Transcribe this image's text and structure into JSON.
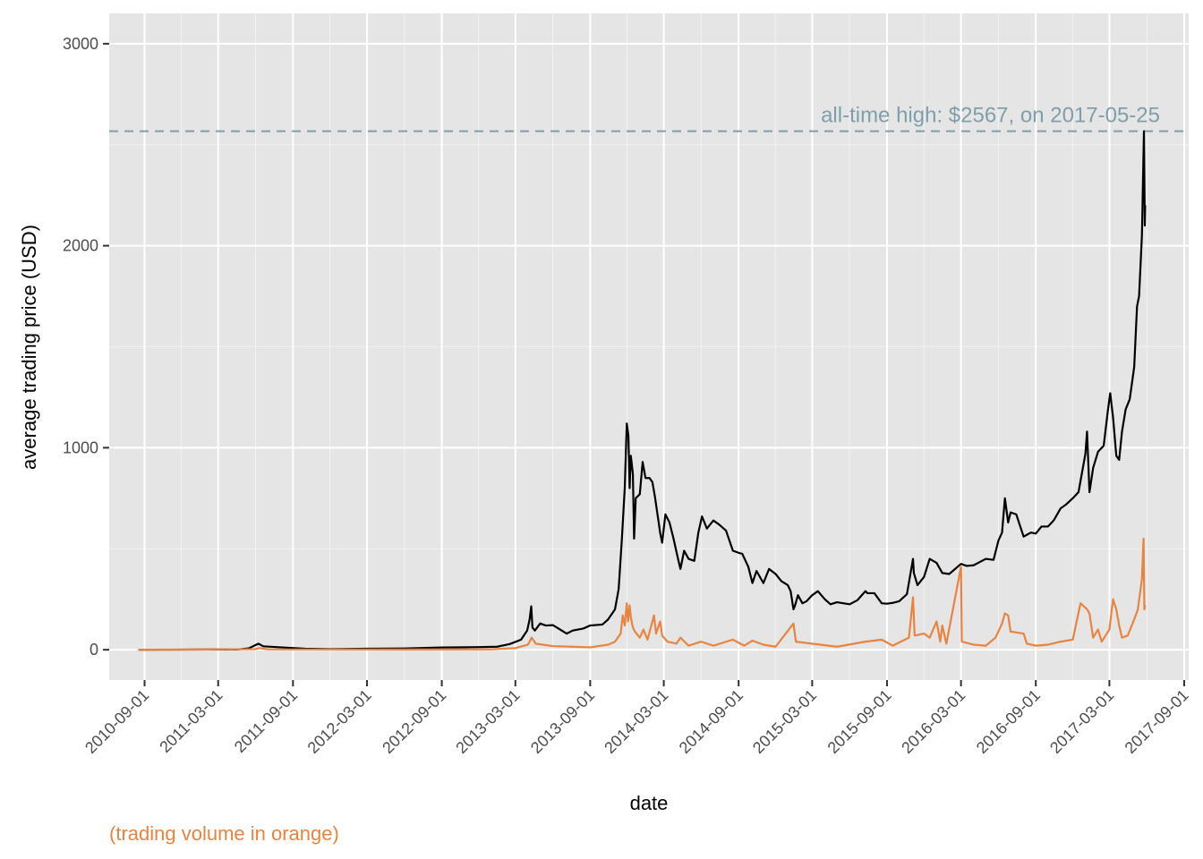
{
  "chart_data": {
    "type": "line",
    "title": "",
    "xlabel": "date",
    "ylabel": "average trading price (USD)",
    "caption": "(trading volume in orange)",
    "annotation": {
      "text": "all-time high: $2567, on 2017-05-25",
      "y": 2567,
      "color": "#7f9eab"
    },
    "ylim": [
      -150,
      3150
    ],
    "xlim": [
      "2010-06-06",
      "2017-09-12"
    ],
    "y_ticks": [
      0,
      1000,
      2000,
      3000
    ],
    "y_tick_labels": [
      "0",
      "1000",
      "2000",
      "3000"
    ],
    "x_ticks": [
      "2010-09-01",
      "2011-03-01",
      "2011-09-01",
      "2012-03-01",
      "2012-09-01",
      "2013-03-01",
      "2013-09-01",
      "2014-03-01",
      "2014-09-01",
      "2015-03-01",
      "2015-09-01",
      "2016-03-01",
      "2016-09-01",
      "2017-03-01",
      "2017-09-01"
    ],
    "grid": true,
    "background": "#e5e5e5",
    "series": [
      {
        "color": "#000000",
        "points": [
          [
            "2010-08-17",
            0.07
          ],
          [
            "2010-11-01",
            0.3
          ],
          [
            "2011-02-01",
            1
          ],
          [
            "2011-04-15",
            1
          ],
          [
            "2011-05-15",
            7
          ],
          [
            "2011-06-08",
            30
          ],
          [
            "2011-06-20",
            17
          ],
          [
            "2011-08-01",
            12
          ],
          [
            "2011-10-01",
            5
          ],
          [
            "2011-12-01",
            3
          ],
          [
            "2012-03-01",
            5
          ],
          [
            "2012-06-01",
            6
          ],
          [
            "2012-09-01",
            11
          ],
          [
            "2012-12-01",
            13
          ],
          [
            "2013-01-15",
            15
          ],
          [
            "2013-02-15",
            28
          ],
          [
            "2013-03-15",
            50
          ],
          [
            "2013-03-30",
            95
          ],
          [
            "2013-04-05",
            150
          ],
          [
            "2013-04-09",
            215
          ],
          [
            "2013-04-12",
            110
          ],
          [
            "2013-04-18",
            95
          ],
          [
            "2013-05-01",
            130
          ],
          [
            "2013-05-15",
            120
          ],
          [
            "2013-06-01",
            122
          ],
          [
            "2013-06-15",
            105
          ],
          [
            "2013-07-05",
            80
          ],
          [
            "2013-07-20",
            95
          ],
          [
            "2013-08-15",
            105
          ],
          [
            "2013-09-01",
            120
          ],
          [
            "2013-10-01",
            125
          ],
          [
            "2013-10-15",
            150
          ],
          [
            "2013-11-01",
            200
          ],
          [
            "2013-11-10",
            300
          ],
          [
            "2013-11-18",
            550
          ],
          [
            "2013-11-25",
            800
          ],
          [
            "2013-11-30",
            1120
          ],
          [
            "2013-12-04",
            1060
          ],
          [
            "2013-12-07",
            800
          ],
          [
            "2013-12-10",
            960
          ],
          [
            "2013-12-15",
            870
          ],
          [
            "2013-12-18",
            550
          ],
          [
            "2013-12-22",
            750
          ],
          [
            "2014-01-01",
            770
          ],
          [
            "2014-01-08",
            930
          ],
          [
            "2014-01-15",
            850
          ],
          [
            "2014-01-25",
            850
          ],
          [
            "2014-02-01",
            830
          ],
          [
            "2014-02-07",
            760
          ],
          [
            "2014-02-15",
            650
          ],
          [
            "2014-02-20",
            580
          ],
          [
            "2014-02-25",
            530
          ],
          [
            "2014-03-05",
            670
          ],
          [
            "2014-03-15",
            630
          ],
          [
            "2014-03-25",
            550
          ],
          [
            "2014-04-05",
            450
          ],
          [
            "2014-04-11",
            400
          ],
          [
            "2014-04-20",
            490
          ],
          [
            "2014-05-01",
            450
          ],
          [
            "2014-05-15",
            440
          ],
          [
            "2014-05-25",
            580
          ],
          [
            "2014-06-03",
            660
          ],
          [
            "2014-06-15",
            600
          ],
          [
            "2014-07-01",
            640
          ],
          [
            "2014-07-15",
            620
          ],
          [
            "2014-08-01",
            590
          ],
          [
            "2014-08-18",
            490
          ],
          [
            "2014-09-01",
            480
          ],
          [
            "2014-09-10",
            475
          ],
          [
            "2014-09-25",
            410
          ],
          [
            "2014-10-05",
            330
          ],
          [
            "2014-10-15",
            390
          ],
          [
            "2014-11-01",
            330
          ],
          [
            "2014-11-15",
            400
          ],
          [
            "2014-12-01",
            375
          ],
          [
            "2014-12-15",
            340
          ],
          [
            "2014-12-31",
            320
          ],
          [
            "2015-01-07",
            290
          ],
          [
            "2015-01-14",
            200
          ],
          [
            "2015-01-18",
            220
          ],
          [
            "2015-01-25",
            270
          ],
          [
            "2015-02-05",
            230
          ],
          [
            "2015-02-15",
            240
          ],
          [
            "2015-03-01",
            270
          ],
          [
            "2015-03-15",
            290
          ],
          [
            "2015-04-01",
            250
          ],
          [
            "2015-04-15",
            225
          ],
          [
            "2015-05-01",
            235
          ],
          [
            "2015-06-01",
            225
          ],
          [
            "2015-06-20",
            245
          ],
          [
            "2015-07-10",
            290
          ],
          [
            "2015-07-15",
            280
          ],
          [
            "2015-08-01",
            280
          ],
          [
            "2015-08-19",
            230
          ],
          [
            "2015-09-01",
            228
          ],
          [
            "2015-09-15",
            232
          ],
          [
            "2015-10-01",
            240
          ],
          [
            "2015-10-20",
            275
          ],
          [
            "2015-11-04",
            450
          ],
          [
            "2015-11-06",
            380
          ],
          [
            "2015-11-15",
            320
          ],
          [
            "2015-12-01",
            360
          ],
          [
            "2015-12-15",
            450
          ],
          [
            "2016-01-01",
            430
          ],
          [
            "2016-01-15",
            380
          ],
          [
            "2016-02-01",
            375
          ],
          [
            "2016-03-01",
            425
          ],
          [
            "2016-03-15",
            415
          ],
          [
            "2016-04-01",
            418
          ],
          [
            "2016-05-01",
            450
          ],
          [
            "2016-05-20",
            445
          ],
          [
            "2016-06-01",
            540
          ],
          [
            "2016-06-10",
            580
          ],
          [
            "2016-06-17",
            750
          ],
          [
            "2016-06-25",
            630
          ],
          [
            "2016-07-01",
            680
          ],
          [
            "2016-07-15",
            670
          ],
          [
            "2016-08-02",
            560
          ],
          [
            "2016-08-20",
            580
          ],
          [
            "2016-09-01",
            575
          ],
          [
            "2016-09-15",
            610
          ],
          [
            "2016-10-01",
            610
          ],
          [
            "2016-10-15",
            640
          ],
          [
            "2016-11-01",
            700
          ],
          [
            "2016-11-15",
            720
          ],
          [
            "2016-12-01",
            750
          ],
          [
            "2016-12-15",
            780
          ],
          [
            "2017-01-01",
            970
          ],
          [
            "2017-01-05",
            1080
          ],
          [
            "2017-01-11",
            780
          ],
          [
            "2017-01-20",
            900
          ],
          [
            "2017-02-01",
            980
          ],
          [
            "2017-02-15",
            1010
          ],
          [
            "2017-02-25",
            1180
          ],
          [
            "2017-03-03",
            1270
          ],
          [
            "2017-03-10",
            1150
          ],
          [
            "2017-03-18",
            960
          ],
          [
            "2017-03-25",
            940
          ],
          [
            "2017-04-01",
            1080
          ],
          [
            "2017-04-10",
            1190
          ],
          [
            "2017-04-20",
            1240
          ],
          [
            "2017-05-01",
            1400
          ],
          [
            "2017-05-08",
            1700
          ],
          [
            "2017-05-13",
            1750
          ],
          [
            "2017-05-20",
            2050
          ],
          [
            "2017-05-25",
            2567
          ],
          [
            "2017-05-27",
            2100
          ],
          [
            "2017-05-28",
            2200
          ]
        ]
      },
      {
        "color": "#e8843f",
        "points": [
          [
            "2010-08-17",
            0
          ],
          [
            "2011-02-01",
            1
          ],
          [
            "2011-06-01",
            3
          ],
          [
            "2011-06-10",
            8
          ],
          [
            "2011-07-01",
            2
          ],
          [
            "2012-06-01",
            1
          ],
          [
            "2013-01-01",
            2
          ],
          [
            "2013-03-01",
            8
          ],
          [
            "2013-04-01",
            25
          ],
          [
            "2013-04-10",
            60
          ],
          [
            "2013-04-20",
            30
          ],
          [
            "2013-06-01",
            18
          ],
          [
            "2013-09-01",
            12
          ],
          [
            "2013-10-15",
            25
          ],
          [
            "2013-11-01",
            40
          ],
          [
            "2013-11-15",
            80
          ],
          [
            "2013-11-20",
            170
          ],
          [
            "2013-11-25",
            120
          ],
          [
            "2013-11-30",
            230
          ],
          [
            "2013-12-03",
            140
          ],
          [
            "2013-12-07",
            220
          ],
          [
            "2013-12-10",
            160
          ],
          [
            "2013-12-15",
            110
          ],
          [
            "2013-12-20",
            90
          ],
          [
            "2014-01-01",
            60
          ],
          [
            "2014-01-10",
            100
          ],
          [
            "2014-01-20",
            50
          ],
          [
            "2014-02-05",
            170
          ],
          [
            "2014-02-10",
            80
          ],
          [
            "2014-02-20",
            140
          ],
          [
            "2014-02-25",
            70
          ],
          [
            "2014-03-10",
            40
          ],
          [
            "2014-04-01",
            30
          ],
          [
            "2014-04-11",
            60
          ],
          [
            "2014-05-01",
            20
          ],
          [
            "2014-06-01",
            40
          ],
          [
            "2014-07-01",
            20
          ],
          [
            "2014-08-18",
            50
          ],
          [
            "2014-09-15",
            20
          ],
          [
            "2014-10-05",
            45
          ],
          [
            "2014-11-01",
            25
          ],
          [
            "2014-12-01",
            15
          ],
          [
            "2015-01-14",
            130
          ],
          [
            "2015-01-20",
            40
          ],
          [
            "2015-03-01",
            30
          ],
          [
            "2015-05-01",
            15
          ],
          [
            "2015-07-10",
            40
          ],
          [
            "2015-08-19",
            50
          ],
          [
            "2015-09-15",
            20
          ],
          [
            "2015-10-25",
            60
          ],
          [
            "2015-11-04",
            260
          ],
          [
            "2015-11-08",
            70
          ],
          [
            "2015-12-01",
            80
          ],
          [
            "2015-12-15",
            60
          ],
          [
            "2016-01-01",
            140
          ],
          [
            "2016-01-10",
            40
          ],
          [
            "2016-01-15",
            120
          ],
          [
            "2016-01-25",
            30
          ],
          [
            "2016-03-01",
            410
          ],
          [
            "2016-03-03",
            40
          ],
          [
            "2016-04-01",
            25
          ],
          [
            "2016-05-01",
            20
          ],
          [
            "2016-05-25",
            60
          ],
          [
            "2016-06-10",
            130
          ],
          [
            "2016-06-17",
            180
          ],
          [
            "2016-06-25",
            170
          ],
          [
            "2016-07-01",
            90
          ],
          [
            "2016-08-02",
            80
          ],
          [
            "2016-08-10",
            30
          ],
          [
            "2016-09-01",
            20
          ],
          [
            "2016-10-01",
            25
          ],
          [
            "2016-11-01",
            40
          ],
          [
            "2016-12-01",
            50
          ],
          [
            "2016-12-20",
            230
          ],
          [
            "2017-01-05",
            200
          ],
          [
            "2017-01-11",
            180
          ],
          [
            "2017-01-20",
            60
          ],
          [
            "2017-02-01",
            100
          ],
          [
            "2017-02-10",
            40
          ],
          [
            "2017-03-01",
            100
          ],
          [
            "2017-03-10",
            250
          ],
          [
            "2017-03-18",
            200
          ],
          [
            "2017-03-25",
            120
          ],
          [
            "2017-04-01",
            60
          ],
          [
            "2017-04-15",
            70
          ],
          [
            "2017-05-01",
            150
          ],
          [
            "2017-05-10",
            200
          ],
          [
            "2017-05-20",
            350
          ],
          [
            "2017-05-24",
            550
          ],
          [
            "2017-05-26",
            200
          ],
          [
            "2017-05-28",
            220
          ]
        ]
      }
    ]
  }
}
